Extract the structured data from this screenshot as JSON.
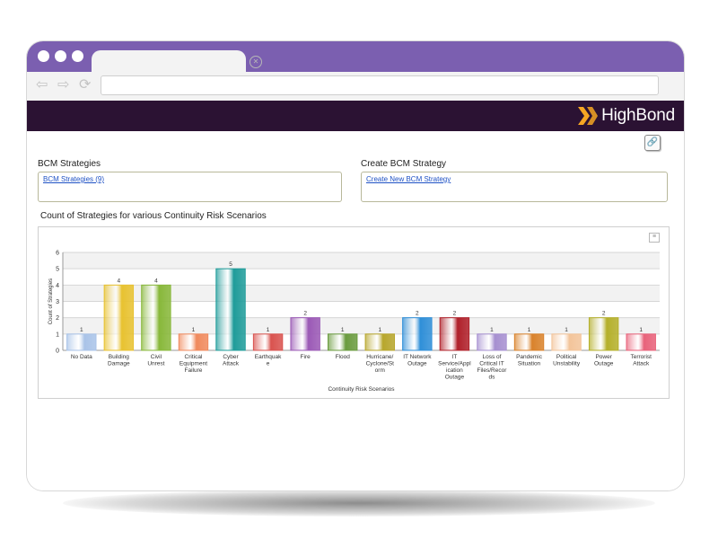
{
  "brand": {
    "name": "HighBond",
    "accent": "#f5a623",
    "bar_color": "#2b1233",
    "tab_color": "#7b5fb0"
  },
  "icons": {
    "back": "arrow-left-icon",
    "forward": "arrow-right-icon",
    "reload": "reload-icon",
    "link": "link-icon",
    "menu": "hamburger-icon",
    "tab_close": "close-icon"
  },
  "strategies": {
    "label": "BCM Strategies",
    "link": "BCM Strategies (9)"
  },
  "create": {
    "label": "Create BCM Strategy",
    "link": "Create New BCM Strategy"
  },
  "chart_data": {
    "type": "bar",
    "title": "Count of Strategies for various Continuity Risk Scenarios",
    "xlabel": "Continuity Risk Scenarios",
    "ylabel": "Count of Strategies",
    "ylim": [
      0,
      6
    ],
    "yticks": [
      0,
      1,
      2,
      3,
      4,
      5,
      6
    ],
    "grid": true,
    "categories": [
      [
        "No Data"
      ],
      [
        "Building",
        "Damage"
      ],
      [
        "Civil",
        "Unrest"
      ],
      [
        "Critical",
        "Equipment",
        "Failure"
      ],
      [
        "Cyber",
        "Attack"
      ],
      [
        "Earthquak",
        "e"
      ],
      [
        "Fire"
      ],
      [
        "Flood"
      ],
      [
        "Hurricane/",
        "Cyclone/St",
        "orm"
      ],
      [
        "IT Network",
        "Outage"
      ],
      [
        "IT",
        "Service/Appl",
        "ication",
        "Outage"
      ],
      [
        "Loss of",
        "Critical IT",
        "Files/Recor",
        "ds"
      ],
      [
        "Pandemic",
        "Situation"
      ],
      [
        "Political",
        "Unstability"
      ],
      [
        "Power",
        "Outage"
      ],
      [
        "Terrorist",
        "Attack"
      ]
    ],
    "values": [
      1,
      4,
      4,
      1,
      5,
      1,
      2,
      1,
      1,
      2,
      2,
      1,
      1,
      1,
      2,
      1
    ],
    "colors": [
      "#a9c3e8",
      "#e8c230",
      "#88b83a",
      "#f08a5d",
      "#1f9c9a",
      "#d9534f",
      "#9b59b6",
      "#6a9b3e",
      "#b7a62c",
      "#2f8fd8",
      "#b0202a",
      "#a68fd0",
      "#d9822b",
      "#f3c49a",
      "#b5b02a",
      "#e8627a"
    ]
  }
}
